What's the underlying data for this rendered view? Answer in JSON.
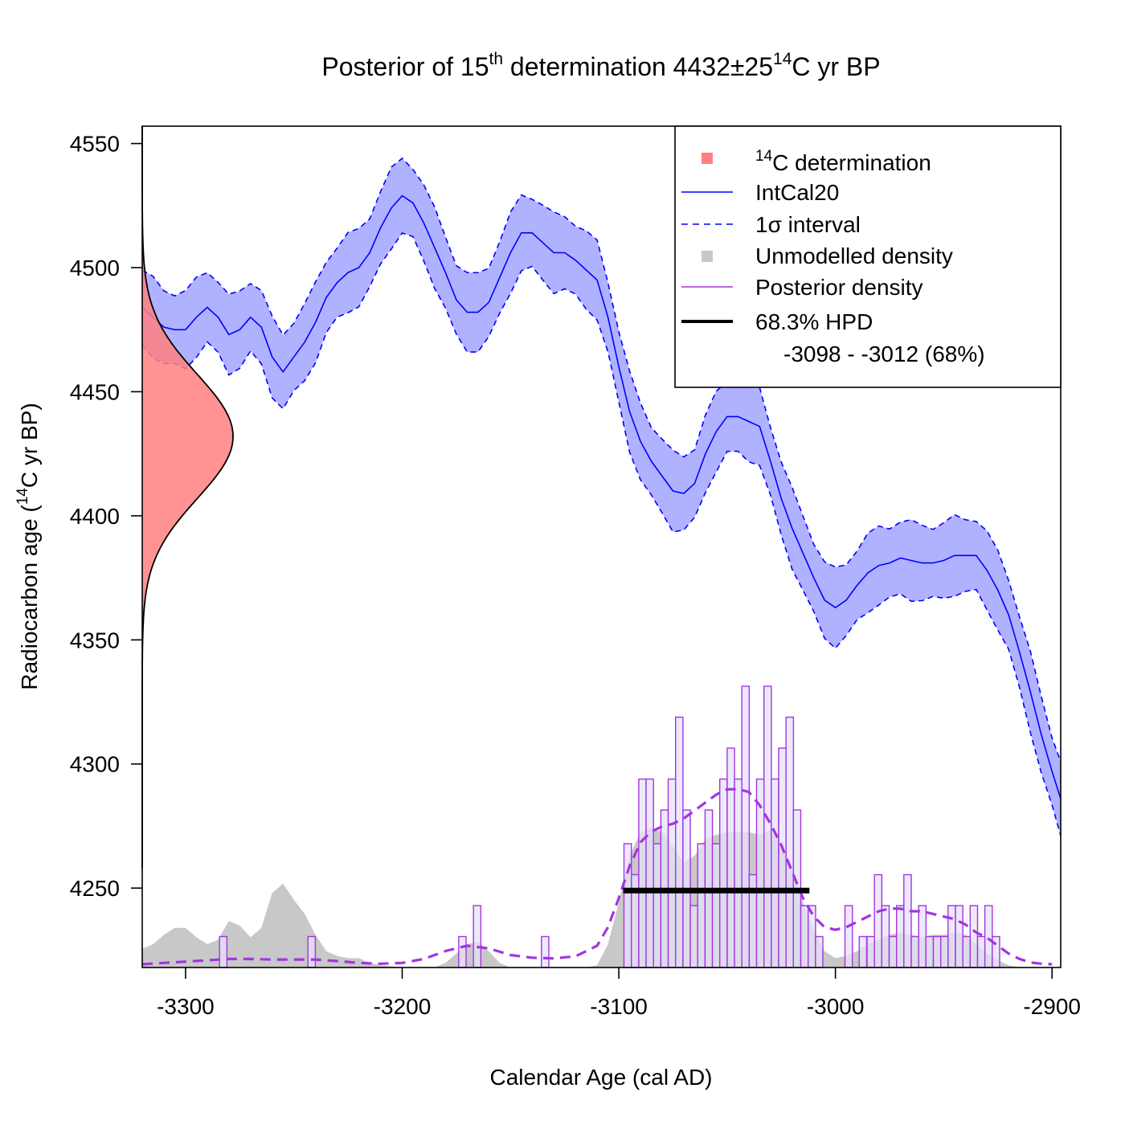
{
  "chart_data": {
    "type": "line",
    "title": {
      "main": "Posterior of 15",
      "sup1": "th",
      "mid": " determination 4432±25",
      "sup2": "14",
      "end": "C yr BP"
    },
    "xlabel": "Calendar Age (cal AD)",
    "ylabel": {
      "pre": "Radiocarbon age (",
      "sup": "14",
      "post": "C yr BP)"
    },
    "xlim": [
      -3320,
      -2896
    ],
    "ylim": [
      4218,
      4557
    ],
    "x_ticks": [
      -3300,
      -3200,
      -3100,
      -3000,
      -2900
    ],
    "y_ticks": [
      4250,
      4300,
      4350,
      4400,
      4450,
      4500,
      4550
    ],
    "determination": {
      "mean": 4432,
      "sd": 25,
      "color": "#ff8080"
    },
    "colors": {
      "intcal": "#0000ff",
      "intcal_fill": "#b0b2ff",
      "unmodelled": "#c8c8c8",
      "posterior": "#a335e0",
      "posterior_fill": "#e6e2fa",
      "hpd": "#000000"
    },
    "intcal20": [
      [
        -3320,
        4484
      ],
      [
        -3315,
        4480
      ],
      [
        -3310,
        4476
      ],
      [
        -3305,
        4475
      ],
      [
        -3300,
        4475
      ],
      [
        -3295,
        4480
      ],
      [
        -3290,
        4484
      ],
      [
        -3285,
        4480
      ],
      [
        -3280,
        4473
      ],
      [
        -3275,
        4475
      ],
      [
        -3270,
        4480
      ],
      [
        -3265,
        4476
      ],
      [
        -3260,
        4464
      ],
      [
        -3255,
        4458
      ],
      [
        -3250,
        4464
      ],
      [
        -3245,
        4470
      ],
      [
        -3240,
        4478
      ],
      [
        -3235,
        4488
      ],
      [
        -3230,
        4494
      ],
      [
        -3225,
        4498
      ],
      [
        -3220,
        4500
      ],
      [
        -3215,
        4506
      ],
      [
        -3210,
        4516
      ],
      [
        -3205,
        4524
      ],
      [
        -3200,
        4529
      ],
      [
        -3195,
        4526
      ],
      [
        -3190,
        4518
      ],
      [
        -3185,
        4508
      ],
      [
        -3180,
        4498
      ],
      [
        -3175,
        4487
      ],
      [
        -3170,
        4482
      ],
      [
        -3165,
        4482
      ],
      [
        -3160,
        4486
      ],
      [
        -3155,
        4496
      ],
      [
        -3150,
        4506
      ],
      [
        -3145,
        4514
      ],
      [
        -3140,
        4514
      ],
      [
        -3135,
        4510
      ],
      [
        -3130,
        4506
      ],
      [
        -3125,
        4506
      ],
      [
        -3120,
        4503
      ],
      [
        -3115,
        4499
      ],
      [
        -3110,
        4495
      ],
      [
        -3105,
        4480
      ],
      [
        -3100,
        4460
      ],
      [
        -3095,
        4442
      ],
      [
        -3090,
        4430
      ],
      [
        -3085,
        4422
      ],
      [
        -3080,
        4416
      ],
      [
        -3075,
        4410
      ],
      [
        -3070,
        4409
      ],
      [
        -3065,
        4413
      ],
      [
        -3060,
        4425
      ],
      [
        -3055,
        4434
      ],
      [
        -3050,
        4440
      ],
      [
        -3045,
        4440
      ],
      [
        -3040,
        4438
      ],
      [
        -3035,
        4436
      ],
      [
        -3030,
        4422
      ],
      [
        -3025,
        4407
      ],
      [
        -3020,
        4395
      ],
      [
        -3015,
        4385
      ],
      [
        -3010,
        4375
      ],
      [
        -3005,
        4366
      ],
      [
        -3000,
        4363
      ],
      [
        -2995,
        4366
      ],
      [
        -2990,
        4372
      ],
      [
        -2985,
        4377
      ],
      [
        -2980,
        4380
      ],
      [
        -2975,
        4381
      ],
      [
        -2970,
        4383
      ],
      [
        -2965,
        4382
      ],
      [
        -2960,
        4381
      ],
      [
        -2955,
        4381
      ],
      [
        -2950,
        4382
      ],
      [
        -2945,
        4384
      ],
      [
        -2940,
        4384
      ],
      [
        -2935,
        4384
      ],
      [
        -2930,
        4378
      ],
      [
        -2925,
        4370
      ],
      [
        -2920,
        4360
      ],
      [
        -2915,
        4345
      ],
      [
        -2910,
        4329
      ],
      [
        -2905,
        4312
      ],
      [
        -2900,
        4297
      ],
      [
        -2896,
        4286
      ]
    ],
    "intcal_sigma": 15,
    "unmodelled_density": [
      [
        -3320,
        0.08
      ],
      [
        -3315,
        0.1
      ],
      [
        -3310,
        0.14
      ],
      [
        -3305,
        0.17
      ],
      [
        -3300,
        0.17
      ],
      [
        -3295,
        0.13
      ],
      [
        -3290,
        0.1
      ],
      [
        -3285,
        0.12
      ],
      [
        -3280,
        0.2
      ],
      [
        -3275,
        0.18
      ],
      [
        -3270,
        0.13
      ],
      [
        -3265,
        0.17
      ],
      [
        -3260,
        0.32
      ],
      [
        -3255,
        0.36
      ],
      [
        -3250,
        0.29
      ],
      [
        -3245,
        0.23
      ],
      [
        -3240,
        0.14
      ],
      [
        -3235,
        0.07
      ],
      [
        -3230,
        0.05
      ],
      [
        -3225,
        0.04
      ],
      [
        -3220,
        0.04
      ],
      [
        -3215,
        0.02
      ],
      [
        -3210,
        0.01
      ],
      [
        -3205,
        0.005
      ],
      [
        -3200,
        0.0
      ],
      [
        -3185,
        0.0
      ],
      [
        -3180,
        0.02
      ],
      [
        -3175,
        0.06
      ],
      [
        -3170,
        0.1
      ],
      [
        -3165,
        0.11
      ],
      [
        -3160,
        0.07
      ],
      [
        -3155,
        0.02
      ],
      [
        -3150,
        0.0
      ],
      [
        -3115,
        0.0
      ],
      [
        -3110,
        0.01
      ],
      [
        -3105,
        0.1
      ],
      [
        -3100,
        0.28
      ],
      [
        -3095,
        0.48
      ],
      [
        -3090,
        0.58
      ],
      [
        -3085,
        0.6
      ],
      [
        -3080,
        0.58
      ],
      [
        -3075,
        0.52
      ],
      [
        -3070,
        0.45
      ],
      [
        -3065,
        0.48
      ],
      [
        -3060,
        0.55
      ],
      [
        -3055,
        0.57
      ],
      [
        -3050,
        0.58
      ],
      [
        -3045,
        0.58
      ],
      [
        -3040,
        0.58
      ],
      [
        -3035,
        0.57
      ],
      [
        -3030,
        0.59
      ],
      [
        -3025,
        0.54
      ],
      [
        -3020,
        0.42
      ],
      [
        -3015,
        0.28
      ],
      [
        -3010,
        0.16
      ],
      [
        -3005,
        0.07
      ],
      [
        -3000,
        0.04
      ],
      [
        -2995,
        0.05
      ],
      [
        -2990,
        0.07
      ],
      [
        -2985,
        0.1
      ],
      [
        -2980,
        0.12
      ],
      [
        -2975,
        0.14
      ],
      [
        -2970,
        0.15
      ],
      [
        -2965,
        0.14
      ],
      [
        -2960,
        0.13
      ],
      [
        -2955,
        0.14
      ],
      [
        -2950,
        0.14
      ],
      [
        -2945,
        0.15
      ],
      [
        -2940,
        0.14
      ],
      [
        -2935,
        0.1
      ],
      [
        -2930,
        0.06
      ],
      [
        -2925,
        0.03
      ],
      [
        -2920,
        0.01
      ],
      [
        -2915,
        0.0
      ],
      [
        -2896,
        0.0
      ]
    ],
    "posterior_density_curve": [
      [
        -3320,
        0.0
      ],
      [
        -3310,
        0.005
      ],
      [
        -3300,
        0.01
      ],
      [
        -3290,
        0.015
      ],
      [
        -3280,
        0.02
      ],
      [
        -3270,
        0.02
      ],
      [
        -3260,
        0.018
      ],
      [
        -3250,
        0.018
      ],
      [
        -3240,
        0.018
      ],
      [
        -3230,
        0.012
      ],
      [
        -3220,
        0.005
      ],
      [
        -3210,
        0.002
      ],
      [
        -3200,
        0.005
      ],
      [
        -3190,
        0.02
      ],
      [
        -3180,
        0.05
      ],
      [
        -3170,
        0.07
      ],
      [
        -3160,
        0.06
      ],
      [
        -3150,
        0.035
      ],
      [
        -3140,
        0.025
      ],
      [
        -3130,
        0.022
      ],
      [
        -3120,
        0.03
      ],
      [
        -3110,
        0.07
      ],
      [
        -3105,
        0.14
      ],
      [
        -3100,
        0.25
      ],
      [
        -3095,
        0.37
      ],
      [
        -3090,
        0.46
      ],
      [
        -3085,
        0.5
      ],
      [
        -3080,
        0.52
      ],
      [
        -3075,
        0.53
      ],
      [
        -3070,
        0.55
      ],
      [
        -3065,
        0.58
      ],
      [
        -3060,
        0.61
      ],
      [
        -3055,
        0.64
      ],
      [
        -3050,
        0.66
      ],
      [
        -3045,
        0.66
      ],
      [
        -3040,
        0.65
      ],
      [
        -3035,
        0.6
      ],
      [
        -3030,
        0.53
      ],
      [
        -3025,
        0.45
      ],
      [
        -3020,
        0.35
      ],
      [
        -3015,
        0.25
      ],
      [
        -3010,
        0.18
      ],
      [
        -3005,
        0.14
      ],
      [
        -3000,
        0.13
      ],
      [
        -2995,
        0.14
      ],
      [
        -2990,
        0.16
      ],
      [
        -2985,
        0.18
      ],
      [
        -2980,
        0.2
      ],
      [
        -2975,
        0.21
      ],
      [
        -2970,
        0.21
      ],
      [
        -2965,
        0.2
      ],
      [
        -2960,
        0.2
      ],
      [
        -2955,
        0.19
      ],
      [
        -2950,
        0.18
      ],
      [
        -2945,
        0.17
      ],
      [
        -2940,
        0.15
      ],
      [
        -2935,
        0.12
      ],
      [
        -2930,
        0.1
      ],
      [
        -2925,
        0.07
      ],
      [
        -2920,
        0.04
      ],
      [
        -2915,
        0.02
      ],
      [
        -2910,
        0.007
      ],
      [
        -2905,
        0.002
      ],
      [
        -2900,
        0.0
      ]
    ],
    "posterior_histogram": {
      "bin_width": 3.4,
      "bins": [
        [
          -3284.3,
          0.11
        ],
        [
          -3243.5,
          0.11
        ],
        [
          -3173.9,
          0.11
        ],
        [
          -3167.1,
          0.22
        ],
        [
          -3135.7,
          0.11
        ],
        [
          -3097.6,
          0.44
        ],
        [
          -3094.2,
          0.33
        ],
        [
          -3090.8,
          0.67
        ],
        [
          -3087.4,
          0.67
        ],
        [
          -3084.0,
          0.44
        ],
        [
          -3080.6,
          0.56
        ],
        [
          -3077.2,
          0.67
        ],
        [
          -3073.8,
          0.89
        ],
        [
          -3070.4,
          0.56
        ],
        [
          -3067.0,
          0.22
        ],
        [
          -3063.6,
          0.44
        ],
        [
          -3060.2,
          0.56
        ],
        [
          -3056.8,
          0.44
        ],
        [
          -3053.4,
          0.67
        ],
        [
          -3050.0,
          0.78
        ],
        [
          -3046.6,
          0.67
        ],
        [
          -3043.2,
          1.0
        ],
        [
          -3039.8,
          0.33
        ],
        [
          -3036.4,
          0.67
        ],
        [
          -3033.0,
          1.0
        ],
        [
          -3029.6,
          0.67
        ],
        [
          -3026.2,
          0.78
        ],
        [
          -3022.8,
          0.89
        ],
        [
          -3019.4,
          0.56
        ],
        [
          -3016.0,
          0.22
        ],
        [
          -3012.6,
          0.22
        ],
        [
          -3009.2,
          0.11
        ],
        [
          -2995.6,
          0.22
        ],
        [
          -2989.0,
          0.11
        ],
        [
          -2985.4,
          0.11
        ],
        [
          -2982.0,
          0.33
        ],
        [
          -2978.6,
          0.22
        ],
        [
          -2975.2,
          0.11
        ],
        [
          -2971.8,
          0.22
        ],
        [
          -2968.4,
          0.33
        ],
        [
          -2965.0,
          0.11
        ],
        [
          -2961.6,
          0.22
        ],
        [
          -2958.2,
          0.11
        ],
        [
          -2954.8,
          0.11
        ],
        [
          -2951.4,
          0.11
        ],
        [
          -2948.0,
          0.22
        ],
        [
          -2944.6,
          0.22
        ],
        [
          -2941.2,
          0.11
        ],
        [
          -2937.8,
          0.22
        ],
        [
          -2934.4,
          0.11
        ],
        [
          -2931.0,
          0.22
        ],
        [
          -2927.6,
          0.11
        ]
      ]
    },
    "hpd": {
      "from": -3098,
      "to": -3012,
      "y": 4249
    },
    "legend": {
      "position": "top-right",
      "items": [
        {
          "key": "determination",
          "symbol": "square",
          "label_sup": "14",
          "label": "C determination"
        },
        {
          "key": "intcal",
          "symbol": "line",
          "label": "IntCal20"
        },
        {
          "key": "sigma",
          "symbol": "dashed",
          "label": "1σ interval"
        },
        {
          "key": "unmodelled",
          "symbol": "square",
          "label": "Unmodelled density"
        },
        {
          "key": "posterior",
          "symbol": "line",
          "label": "Posterior density"
        },
        {
          "key": "hpd",
          "symbol": "thick-line",
          "label": "68.3% HPD"
        }
      ],
      "hpd_interval": "-3098 - -3012 (68%)"
    }
  }
}
